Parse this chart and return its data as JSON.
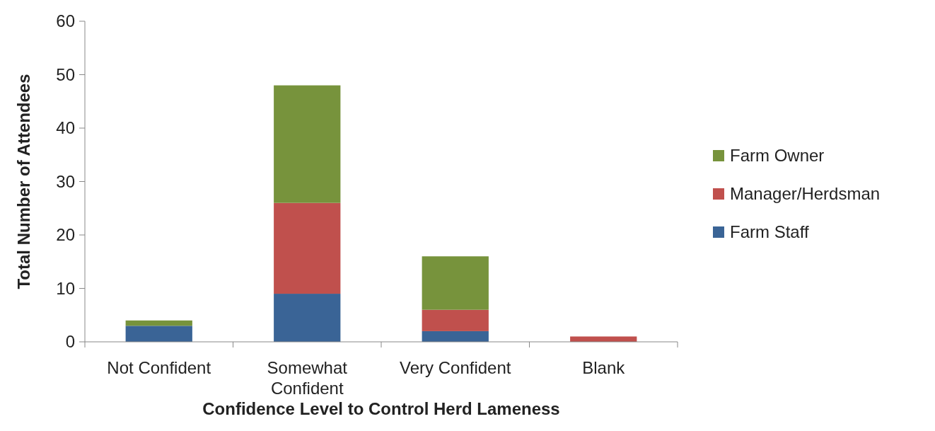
{
  "chart_data": {
    "type": "bar",
    "stacked": true,
    "xlabel": "Confidence Level to Control Herd Lameness",
    "ylabel": "Total Number of Attendees",
    "categories": [
      "Not Confident",
      "Somewhat Confident",
      "Very Confident",
      "Blank"
    ],
    "series": [
      {
        "name": "Farm Staff",
        "color": "#3a6496",
        "values": [
          3,
          9,
          2,
          0
        ]
      },
      {
        "name": "Manager/Herdsman",
        "color": "#c0504d",
        "values": [
          0,
          17,
          4,
          1
        ]
      },
      {
        "name": "Farm Owner",
        "color": "#77933c",
        "values": [
          1,
          22,
          10,
          0
        ]
      }
    ],
    "ylim": [
      0,
      60
    ],
    "yticks": [
      0,
      10,
      20,
      30,
      40,
      50,
      60
    ],
    "legend": "right"
  }
}
